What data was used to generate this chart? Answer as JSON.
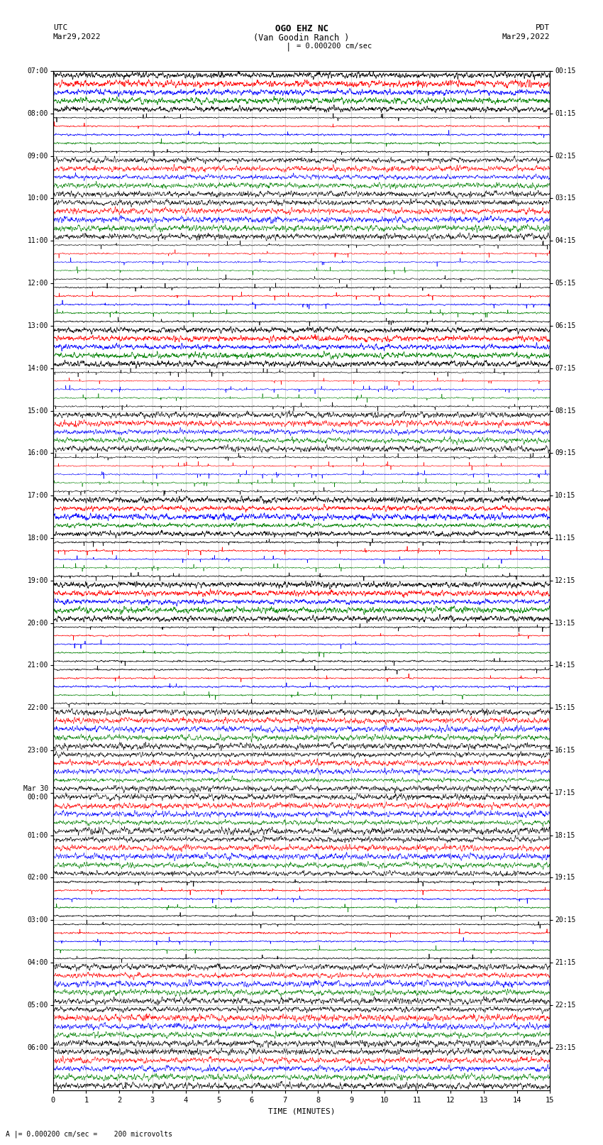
{
  "title_line1": "OGO EHZ NC",
  "title_line2": "(Van Goodin Ranch )",
  "scale_label": "I = 0.000200 cm/sec",
  "left_label_top": "UTC",
  "left_label_date": "Mar29,2022",
  "right_label_top": "PDT",
  "right_label_date": "Mar29,2022",
  "xlabel": "TIME (MINUTES)",
  "bottom_note": "= 0.000200 cm/sec =    200 microvolts",
  "xlim": [
    0,
    15
  ],
  "xticks": [
    0,
    1,
    2,
    3,
    4,
    5,
    6,
    7,
    8,
    9,
    10,
    11,
    12,
    13,
    14,
    15
  ],
  "utc_labels": [
    "07:00",
    "08:00",
    "09:00",
    "10:00",
    "11:00",
    "12:00",
    "13:00",
    "14:00",
    "15:00",
    "16:00",
    "17:00",
    "18:00",
    "19:00",
    "20:00",
    "21:00",
    "22:00",
    "23:00",
    "Mar 30\n00:00",
    "01:00",
    "02:00",
    "03:00",
    "04:00",
    "05:00",
    "06:00"
  ],
  "pdt_labels": [
    "00:15",
    "01:15",
    "02:15",
    "03:15",
    "04:15",
    "05:15",
    "06:15",
    "07:15",
    "08:15",
    "09:15",
    "10:15",
    "11:15",
    "12:15",
    "13:15",
    "14:15",
    "15:15",
    "16:15",
    "17:15",
    "18:15",
    "19:15",
    "20:15",
    "21:15",
    "22:15",
    "23:15"
  ],
  "n_rows": 24,
  "traces_per_row": 5,
  "trace_colors": [
    "black",
    "red",
    "blue",
    "green",
    "black"
  ],
  "background_color": "white",
  "grid_color": "#999999",
  "fig_width": 8.5,
  "fig_height": 16.13,
  "dpi": 100,
  "noise_seed": 42,
  "row_amplitudes": {
    "0": [
      0.008,
      0.003,
      0.01,
      0.012,
      0.008
    ],
    "1": [
      0.035,
      0.008,
      0.04,
      0.05,
      0.04
    ],
    "2": [
      0.6,
      0.5,
      0.7,
      0.75,
      0.6
    ],
    "3": [
      0.85,
      0.8,
      0.9,
      0.9,
      0.85
    ],
    "4": [
      0.5,
      0.3,
      0.55,
      0.65,
      0.5
    ],
    "5": [
      0.04,
      0.025,
      0.05,
      0.04,
      0.04
    ],
    "6": [
      0.006,
      0.003,
      0.008,
      0.008,
      0.006
    ],
    "7": [
      0.3,
      0.08,
      0.35,
      0.4,
      0.3
    ],
    "8": [
      0.75,
      0.6,
      0.8,
      0.85,
      0.75
    ],
    "9": [
      0.35,
      0.15,
      0.4,
      0.5,
      0.35
    ],
    "10": [
      0.006,
      0.003,
      0.008,
      0.008,
      0.006
    ],
    "11": [
      0.04,
      0.015,
      0.05,
      0.06,
      0.04
    ],
    "12": [
      0.006,
      0.003,
      0.008,
      0.008,
      0.006
    ],
    "13": [
      0.008,
      0.003,
      0.01,
      0.012,
      0.008
    ],
    "14": [
      0.008,
      0.003,
      0.012,
      0.01,
      0.008
    ],
    "15": [
      0.55,
      0.45,
      0.65,
      0.7,
      0.55
    ],
    "16": [
      0.7,
      0.65,
      0.75,
      0.8,
      0.7
    ],
    "17": [
      0.45,
      0.35,
      0.55,
      0.65,
      0.5
    ],
    "18": [
      0.25,
      0.35,
      0.3,
      0.2,
      0.25
    ],
    "19": [
      0.008,
      0.005,
      0.012,
      0.015,
      0.008
    ],
    "20": [
      0.008,
      0.003,
      0.01,
      0.01,
      0.008
    ],
    "21": [
      0.55,
      0.45,
      0.65,
      0.7,
      0.55
    ],
    "22": [
      0.65,
      0.55,
      0.75,
      0.8,
      0.65
    ],
    "23": [
      0.55,
      0.45,
      0.65,
      0.75,
      0.6
    ]
  },
  "row_spike_prob": {
    "0": 0.0,
    "1": 0.003,
    "2": 0.0,
    "3": 0.0,
    "4": 0.005,
    "5": 0.005,
    "6": 0.0,
    "7": 0.01,
    "8": 0.0,
    "9": 0.008,
    "10": 0.0,
    "11": 0.008,
    "12": 0.0,
    "13": 0.003,
    "14": 0.003,
    "15": 0.0,
    "16": 0.0,
    "17": 0.0,
    "18": 0.0,
    "19": 0.003,
    "20": 0.003,
    "21": 0.0,
    "22": 0.0,
    "23": 0.0
  }
}
